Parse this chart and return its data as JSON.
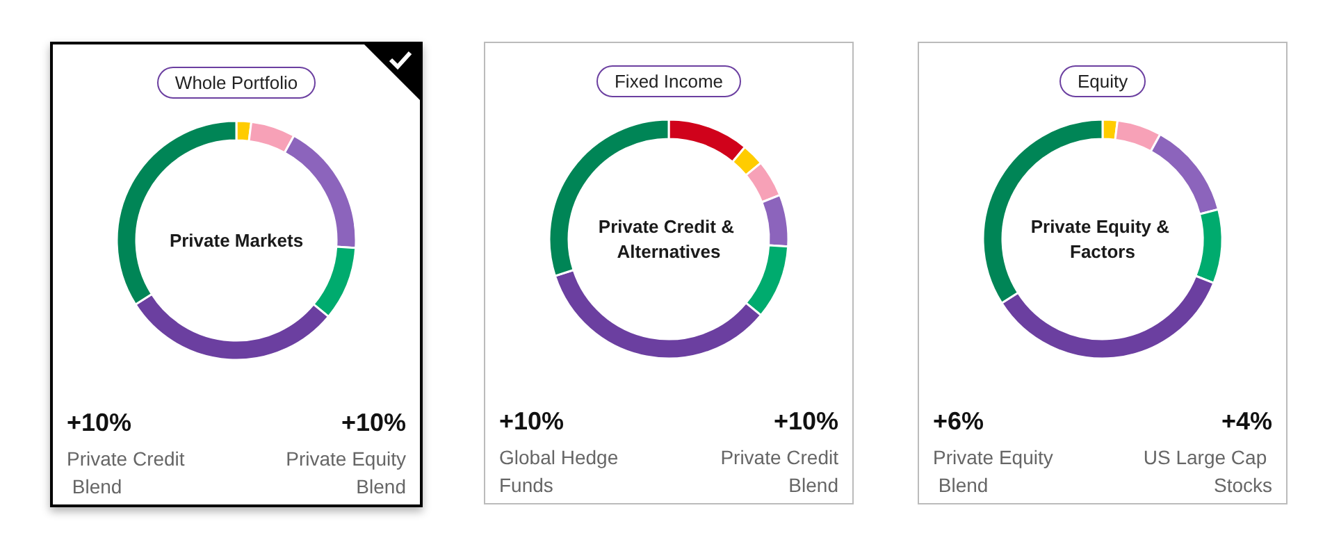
{
  "chart_data": [
    {
      "type": "donut",
      "title": "Whole Portfolio",
      "subtitle": "Private Markets",
      "categories": [
        null,
        null,
        null,
        null,
        null,
        null
      ],
      "values": [
        2,
        6,
        18,
        10,
        30,
        34
      ],
      "colors": [
        "#ffcc00",
        "#f7a1b7",
        "#8c64bc",
        "#00ab6e",
        "#6b3fa0",
        "#008556"
      ],
      "annotations": [
        "+10%",
        "Private Credit Blend",
        "+10%",
        "Private Equity Blend"
      ]
    },
    {
      "type": "donut",
      "title": "Fixed Income",
      "subtitle": "Private Credit & Alternatives",
      "categories": [
        null,
        null,
        null,
        null,
        null,
        null,
        null
      ],
      "values": [
        11,
        3,
        5,
        7,
        10,
        34,
        30
      ],
      "colors": [
        "#d0021b",
        "#ffcc00",
        "#f7a1b7",
        "#8c64bc",
        "#00ab6e",
        "#6b3fa0",
        "#008556"
      ],
      "annotations": [
        "+10%",
        "Global Hedge Funds",
        "+10%",
        "Private Credit Blend"
      ]
    },
    {
      "type": "donut",
      "title": "Equity",
      "subtitle": "Private Equity & Factors",
      "categories": [
        null,
        null,
        null,
        null,
        null,
        null
      ],
      "values": [
        2,
        6,
        13,
        10,
        35,
        34
      ],
      "colors": [
        "#ffcc00",
        "#f7a1b7",
        "#8c64bc",
        "#00ab6e",
        "#6b3fa0",
        "#008556"
      ],
      "annotations": [
        "+6%",
        "Private Equity Blend",
        "+4%",
        "US Large Cap Stocks"
      ]
    }
  ]
}
